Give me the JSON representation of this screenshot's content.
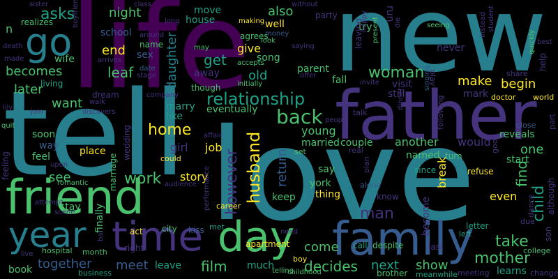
{
  "background": "#000000",
  "palette": {
    "purple": "#440154",
    "violet": "#46337e",
    "indigo": "#365c8d",
    "blue": "#277f8e",
    "teal": "#1fa187",
    "green": "#4ac16d",
    "lime": "#a0da39",
    "yellow": "#fde725"
  },
  "words": [
    {
      "text": "love",
      "color": "blue"
    },
    {
      "text": "life",
      "color": "purple"
    },
    {
      "text": "new",
      "color": "blue"
    },
    {
      "text": "tell",
      "color": "blue"
    },
    {
      "text": "father",
      "color": "violet"
    },
    {
      "text": "friend",
      "color": "green"
    },
    {
      "text": "family",
      "color": "indigo"
    },
    {
      "text": "time",
      "color": "violet"
    },
    {
      "text": "day",
      "color": "green"
    },
    {
      "text": "year",
      "color": "blue"
    },
    {
      "text": "go",
      "color": "blue"
    },
    {
      "text": "relationship",
      "color": "teal"
    },
    {
      "text": "woman",
      "color": "green"
    },
    {
      "text": "back",
      "color": "green"
    },
    {
      "text": "home",
      "color": "yellow"
    },
    {
      "text": "husband",
      "color": "yellow"
    },
    {
      "text": "however",
      "color": "violet"
    },
    {
      "text": "mother",
      "color": "green"
    },
    {
      "text": "work",
      "color": "green"
    },
    {
      "text": "meet",
      "color": "indigo"
    },
    {
      "text": "film",
      "color": "green"
    },
    {
      "text": "decides",
      "color": "green"
    },
    {
      "text": "take",
      "color": "green"
    },
    {
      "text": "child",
      "color": "teal"
    },
    {
      "text": "man",
      "color": "violet"
    },
    {
      "text": "make",
      "color": "yellow"
    },
    {
      "text": "begin",
      "color": "yellow"
    },
    {
      "text": "daughter",
      "color": "blue"
    },
    {
      "text": "leaf",
      "color": "green"
    },
    {
      "text": "get",
      "color": "teal"
    },
    {
      "text": "end",
      "color": "yellow"
    },
    {
      "text": "asks",
      "color": "teal"
    },
    {
      "text": "becomes",
      "color": "green"
    },
    {
      "text": "want",
      "color": "green"
    },
    {
      "text": "later",
      "color": "green"
    },
    {
      "text": "night",
      "color": "green"
    },
    {
      "text": "also",
      "color": "green"
    },
    {
      "text": "together",
      "color": "indigo"
    },
    {
      "text": "show",
      "color": "green"
    },
    {
      "text": "next",
      "color": "teal"
    },
    {
      "text": "come",
      "color": "green"
    },
    {
      "text": "find",
      "color": "green"
    },
    {
      "text": "return",
      "color": "indigo"
    },
    {
      "text": "one",
      "color": "green"
    },
    {
      "text": "young",
      "color": "green"
    },
    {
      "text": "another",
      "color": "green"
    },
    {
      "text": "would",
      "color": "violet"
    },
    {
      "text": "even",
      "color": "yellow"
    },
    {
      "text": "see",
      "color": "green"
    },
    {
      "text": "marry",
      "color": "teal"
    },
    {
      "text": "like",
      "color": "teal"
    },
    {
      "text": "girl",
      "color": "violet"
    },
    {
      "text": "job",
      "color": "yellow"
    },
    {
      "text": "story",
      "color": "yellow"
    },
    {
      "text": "old",
      "color": "teal"
    },
    {
      "text": "give",
      "color": "yellow"
    },
    {
      "text": "song",
      "color": "green"
    },
    {
      "text": "well",
      "color": "yellow"
    },
    {
      "text": "house",
      "color": "teal"
    },
    {
      "text": "move",
      "color": "teal"
    },
    {
      "text": "away",
      "color": "violet"
    },
    {
      "text": "school",
      "color": "indigo"
    },
    {
      "text": "sex",
      "color": "indigo"
    },
    {
      "text": "wife",
      "color": "green"
    },
    {
      "text": "soon",
      "color": "green"
    },
    {
      "text": "way",
      "color": "indigo"
    },
    {
      "text": "feel",
      "color": "green"
    },
    {
      "text": "place",
      "color": "yellow"
    },
    {
      "text": "married",
      "color": "green"
    },
    {
      "text": "couple",
      "color": "green"
    },
    {
      "text": "named",
      "color": "green"
    },
    {
      "text": "break",
      "color": "yellow"
    },
    {
      "text": "say",
      "color": "green"
    },
    {
      "text": "york",
      "color": "green"
    },
    {
      "text": "thing",
      "color": "yellow"
    },
    {
      "text": "keep",
      "color": "green"
    },
    {
      "text": "become",
      "color": "violet"
    },
    {
      "text": "start",
      "color": "green"
    },
    {
      "text": "reveals",
      "color": "green"
    },
    {
      "text": "visit",
      "color": "violet"
    },
    {
      "text": "still",
      "color": "violet"
    },
    {
      "text": "fall",
      "color": "green"
    },
    {
      "text": "never",
      "color": "violet"
    },
    {
      "text": "eventually",
      "color": "green"
    },
    {
      "text": "though",
      "color": "green"
    },
    {
      "text": "parent",
      "color": "green"
    },
    {
      "text": "party",
      "color": "violet"
    },
    {
      "text": "try",
      "color": "green"
    },
    {
      "text": "run",
      "color": "violet"
    },
    {
      "text": "stay",
      "color": "green"
    },
    {
      "text": "finally",
      "color": "green"
    },
    {
      "text": "marriage",
      "color": "green"
    },
    {
      "text": "wedding",
      "color": "violet"
    },
    {
      "text": "leave",
      "color": "teal"
    },
    {
      "text": "much",
      "color": "teal"
    },
    {
      "text": "apartment",
      "color": "yellow"
    },
    {
      "text": "call",
      "color": "teal"
    },
    {
      "text": "despite",
      "color": "green"
    },
    {
      "text": "know",
      "color": "violet"
    },
    {
      "text": "kiss",
      "color": "indigo"
    },
    {
      "text": "city",
      "color": "green"
    },
    {
      "text": "letter",
      "color": "teal"
    },
    {
      "text": "learns",
      "color": "teal"
    },
    {
      "text": "book",
      "color": "green"
    },
    {
      "text": "mark",
      "color": "violet"
    },
    {
      "text": "dream",
      "color": "violet"
    },
    {
      "text": "feeling",
      "color": "violet"
    },
    {
      "text": "living",
      "color": "teal"
    },
    {
      "text": "realizes",
      "color": "green"
    },
    {
      "text": "n",
      "color": "green"
    },
    {
      "text": "help",
      "color": "violet"
    },
    {
      "text": "although",
      "color": "violet"
    },
    {
      "text": "son",
      "color": "violet"
    },
    {
      "text": "name",
      "color": "green"
    },
    {
      "text": "agrees",
      "color": "green"
    },
    {
      "text": "leaving",
      "color": "violet"
    },
    {
      "text": "since",
      "color": "teal"
    },
    {
      "text": "refuse",
      "color": "yellow"
    },
    {
      "text": "month",
      "color": "green"
    },
    {
      "text": "last",
      "color": "violet"
    },
    {
      "text": "act",
      "color": "yellow"
    },
    {
      "text": "right",
      "color": "violet"
    },
    {
      "text": "hospital",
      "color": "green"
    },
    {
      "text": "boy",
      "color": "yellow"
    },
    {
      "text": "brother",
      "color": "green"
    },
    {
      "text": "business",
      "color": "teal"
    },
    {
      "text": "meeting",
      "color": "violet"
    },
    {
      "text": "college",
      "color": "green"
    },
    {
      "text": "change",
      "color": "violet"
    },
    {
      "text": "meanwhile",
      "color": "teal"
    },
    {
      "text": "telling",
      "color": "green"
    },
    {
      "text": "career",
      "color": "yellow"
    },
    {
      "text": "met",
      "color": "teal"
    },
    {
      "text": "could",
      "color": "yellow"
    },
    {
      "text": "dance",
      "color": "violet"
    },
    {
      "text": "due",
      "color": "violet"
    },
    {
      "text": "left",
      "color": "teal"
    },
    {
      "text": "doctor",
      "color": "yellow"
    },
    {
      "text": "world",
      "color": "yellow"
    },
    {
      "text": "share",
      "color": "violet"
    },
    {
      "text": "close",
      "color": "indigo"
    },
    {
      "text": "part",
      "color": "violet"
    },
    {
      "text": "plan",
      "color": "violet"
    },
    {
      "text": "alone",
      "color": "indigo"
    },
    {
      "text": "real",
      "color": "violet"
    },
    {
      "text": "set",
      "color": "green"
    },
    {
      "text": "dinner",
      "color": "violet"
    },
    {
      "text": "following",
      "color": "violet"
    },
    {
      "text": "good",
      "color": "violet"
    },
    {
      "text": "turn",
      "color": "green"
    },
    {
      "text": "talk",
      "color": "violet"
    },
    {
      "text": "people",
      "color": "violet"
    },
    {
      "text": "play",
      "color": "violet"
    },
    {
      "text": "singing",
      "color": "indigo"
    },
    {
      "text": "invite",
      "color": "violet"
    },
    {
      "text": "offer",
      "color": "violet"
    },
    {
      "text": "initially",
      "color": "green"
    },
    {
      "text": "accepts",
      "color": "green"
    },
    {
      "text": "present",
      "color": "green"
    },
    {
      "text": "happy",
      "color": "violet"
    },
    {
      "text": "saying",
      "color": "violet"
    },
    {
      "text": "seeing",
      "color": "green"
    },
    {
      "text": "instead",
      "color": "violet"
    },
    {
      "text": "student",
      "color": "violet"
    },
    {
      "text": "die",
      "color": "violet"
    },
    {
      "text": "quickly",
      "color": "green"
    },
    {
      "text": "best",
      "color": "violet"
    },
    {
      "text": "sister",
      "color": "violet"
    },
    {
      "text": "class",
      "color": "violet"
    },
    {
      "text": "without",
      "color": "violet"
    },
    {
      "text": "long",
      "color": "violet"
    },
    {
      "text": "making",
      "color": "yellow"
    },
    {
      "text": "money",
      "color": "indigo"
    },
    {
      "text": "look",
      "color": "green"
    },
    {
      "text": "around",
      "color": "violet"
    },
    {
      "text": "may",
      "color": "green"
    },
    {
      "text": "arrives",
      "color": "violet"
    },
    {
      "text": "death",
      "color": "violet"
    },
    {
      "text": "made",
      "color": "violet"
    },
    {
      "text": "boyfriend",
      "color": "violet"
    },
    {
      "text": "date",
      "color": "indigo"
    },
    {
      "text": "stage",
      "color": "violet"
    },
    {
      "text": "company",
      "color": "violet"
    },
    {
      "text": "walk",
      "color": "violet"
    },
    {
      "text": "discovers",
      "color": "violet"
    },
    {
      "text": "join",
      "color": "violet"
    },
    {
      "text": "lily",
      "color": "violet"
    },
    {
      "text": "quit",
      "color": "green"
    },
    {
      "text": "upon",
      "color": "violet"
    },
    {
      "text": "romantic",
      "color": "green"
    },
    {
      "text": "attempt",
      "color": "violet"
    },
    {
      "text": "scene",
      "color": "violet"
    },
    {
      "text": "live",
      "color": "violet"
    },
    {
      "text": "audience",
      "color": "violet"
    },
    {
      "text": "performance",
      "color": "violet"
    },
    {
      "text": "affair",
      "color": "violet"
    },
    {
      "text": "childhood",
      "color": "green"
    },
    {
      "text": "need",
      "color": "violet"
    },
    {
      "text": "bar",
      "color": "violet"
    }
  ]
}
